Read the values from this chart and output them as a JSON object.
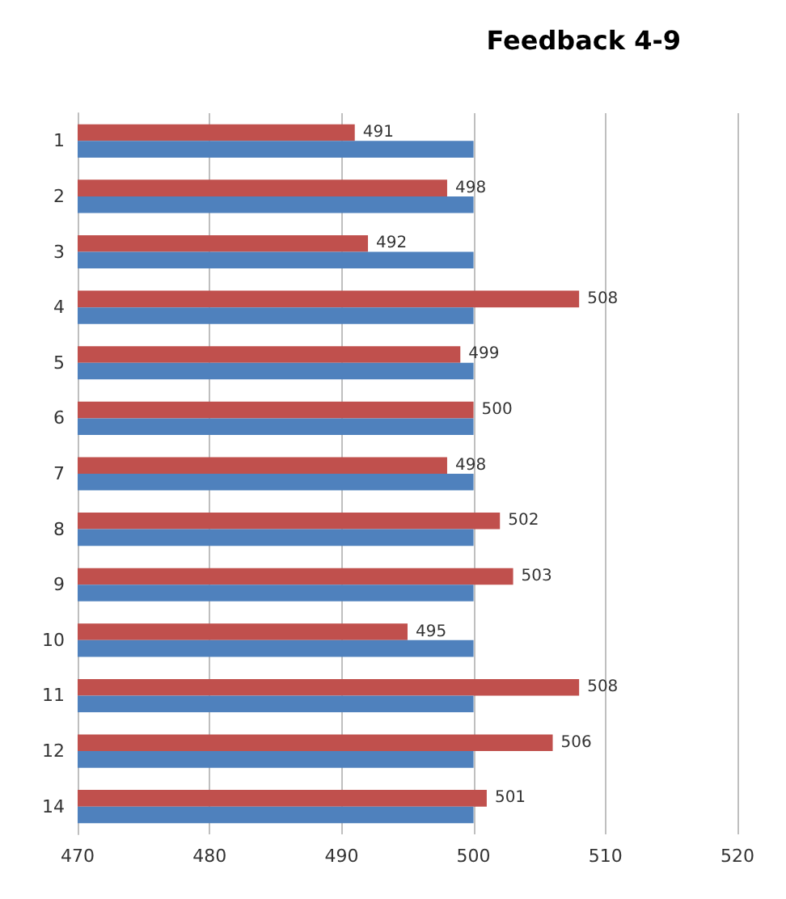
{
  "chart_data": {
    "type": "bar",
    "orientation": "horizontal",
    "title": "Feedback 4-9",
    "categories": [
      "1",
      "2",
      "3",
      "4",
      "5",
      "6",
      "7",
      "8",
      "9",
      "10",
      "11",
      "12",
      "14"
    ],
    "series": [
      {
        "color": "#c0504d",
        "values": [
          491,
          498,
          492,
          508,
          499,
          500,
          498,
          502,
          503,
          495,
          508,
          506,
          501
        ],
        "value_labels": [
          "491",
          "498",
          "492",
          "508",
          "499",
          "500",
          "498",
          "502",
          "503",
          "495",
          "508",
          "506",
          "501"
        ]
      },
      {
        "color": "#4f81bd",
        "values": [
          500,
          500,
          500,
          500,
          500,
          500,
          500,
          500,
          500,
          500,
          500,
          500,
          500
        ]
      }
    ],
    "xlim": [
      470,
      520
    ],
    "xticks": [
      470,
      480,
      490,
      500,
      510,
      520
    ],
    "grid": "x"
  }
}
